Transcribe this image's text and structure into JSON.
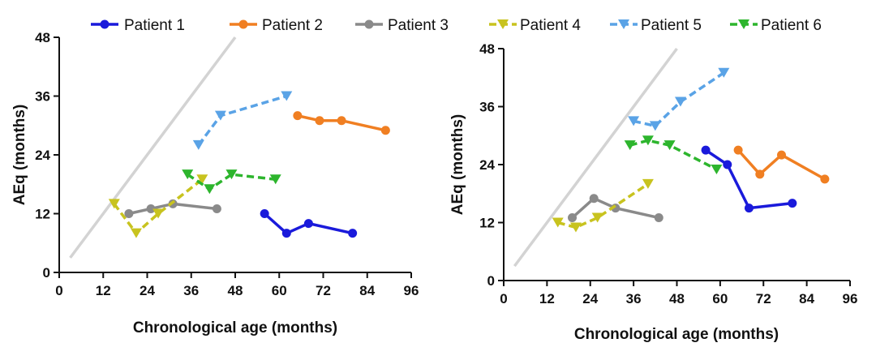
{
  "legend": [
    {
      "name": "Patient 1",
      "color": "#1a1adb",
      "style": "solid",
      "marker": "circle"
    },
    {
      "name": "Patient 2",
      "color": "#f07f22",
      "style": "solid",
      "marker": "circle"
    },
    {
      "name": "Patient 3",
      "color": "#8a8a8a",
      "style": "solid",
      "marker": "circle"
    },
    {
      "name": "Patient 4",
      "color": "#c8c31f",
      "style": "dashed",
      "marker": "triangle-down"
    },
    {
      "name": "Patient 5",
      "color": "#5aa3e6",
      "style": "dashed",
      "marker": "triangle-down"
    },
    {
      "name": "Patient 6",
      "color": "#2db52d",
      "style": "dashed",
      "marker": "triangle-down"
    }
  ],
  "reference_line_color": "#d3d3d3",
  "chart_data": [
    {
      "type": "line",
      "xlabel": "Chronological age (months)",
      "ylabel": "AEq (months)",
      "xlim": [
        0,
        96
      ],
      "ylim": [
        0,
        48
      ],
      "xticks": [
        "0",
        "12",
        "24",
        "36",
        "48",
        "60",
        "72",
        "84",
        "96"
      ],
      "yticks": [
        "0",
        "12",
        "24",
        "36",
        "48"
      ],
      "reference_line": [
        [
          3,
          3
        ],
        [
          48,
          48
        ]
      ],
      "series": [
        {
          "name": "Patient 1",
          "x": [
            56,
            62,
            68,
            80
          ],
          "y": [
            12,
            8,
            10,
            8
          ]
        },
        {
          "name": "Patient 2",
          "x": [
            65,
            71,
            77,
            89
          ],
          "y": [
            32,
            31,
            31,
            29
          ]
        },
        {
          "name": "Patient 3",
          "x": [
            19,
            25,
            31,
            43
          ],
          "y": [
            12,
            13,
            14,
            13
          ]
        },
        {
          "name": "Patient 4",
          "x": [
            15,
            21,
            27,
            39
          ],
          "y": [
            14,
            8,
            12,
            19
          ]
        },
        {
          "name": "Patient 5",
          "x": [
            38,
            44,
            62
          ],
          "y": [
            26,
            32,
            36
          ]
        },
        {
          "name": "Patient 6",
          "x": [
            35,
            41,
            47,
            59
          ],
          "y": [
            20,
            17,
            20,
            19
          ]
        }
      ]
    },
    {
      "type": "line",
      "xlabel": "Chronological age (months)",
      "ylabel": "AEq (months)",
      "xlim": [
        0,
        96
      ],
      "ylim": [
        0,
        48
      ],
      "xticks": [
        "0",
        "12",
        "24",
        "36",
        "48",
        "60",
        "72",
        "84",
        "96"
      ],
      "yticks": [
        "0",
        "12",
        "24",
        "36",
        "48"
      ],
      "reference_line": [
        [
          3,
          3
        ],
        [
          48,
          48
        ]
      ],
      "series": [
        {
          "name": "Patient 1",
          "x": [
            56,
            62,
            68,
            80
          ],
          "y": [
            27,
            24,
            15,
            16
          ]
        },
        {
          "name": "Patient 2",
          "x": [
            65,
            71,
            77,
            89
          ],
          "y": [
            27,
            22,
            26,
            21
          ]
        },
        {
          "name": "Patient 3",
          "x": [
            19,
            25,
            31,
            43
          ],
          "y": [
            13,
            17,
            15,
            13
          ]
        },
        {
          "name": "Patient 4",
          "x": [
            15,
            20,
            26,
            40
          ],
          "y": [
            12,
            11,
            13,
            20
          ]
        },
        {
          "name": "Patient 5",
          "x": [
            36,
            42,
            49,
            61
          ],
          "y": [
            33,
            32,
            37,
            43
          ]
        },
        {
          "name": "Patient 6",
          "x": [
            35,
            40,
            46,
            59
          ],
          "y": [
            28,
            29,
            28,
            23
          ]
        }
      ]
    }
  ]
}
